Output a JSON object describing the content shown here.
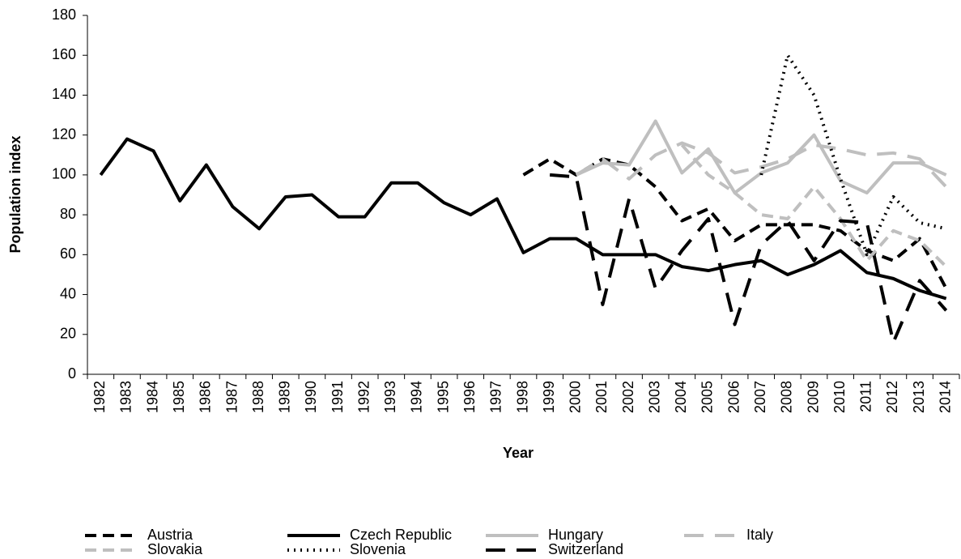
{
  "chart_data": {
    "type": "line",
    "x_label": "Year",
    "y_label": "Population index",
    "categories": [
      "1982",
      "1983",
      "1984",
      "1985",
      "1986",
      "1987",
      "1988",
      "1989",
      "1990",
      "1991",
      "1992",
      "1993",
      "1994",
      "1995",
      "1996",
      "1997",
      "1998",
      "1999",
      "2000",
      "2001",
      "2002",
      "2003",
      "2004",
      "2005",
      "2006",
      "2007",
      "2008",
      "2009",
      "2010",
      "2011",
      "2012",
      "2013",
      "2014"
    ],
    "ylim": [
      0,
      180
    ],
    "yticks": [
      0,
      20,
      40,
      60,
      80,
      100,
      120,
      140,
      160,
      180
    ],
    "series": [
      {
        "name": "Austria",
        "color": "#000000",
        "dash": "14,8",
        "values": [
          null,
          null,
          null,
          null,
          null,
          null,
          null,
          null,
          null,
          null,
          null,
          null,
          null,
          null,
          null,
          null,
          100,
          108,
          100,
          108,
          105,
          94,
          77,
          83,
          67,
          75,
          75,
          75,
          72,
          62,
          57,
          68,
          43
        ]
      },
      {
        "name": "Czech Republic",
        "color": "#000000",
        "dash": "none",
        "values": [
          100,
          118,
          112,
          87,
          105,
          84,
          73,
          89,
          90,
          79,
          79,
          96,
          96,
          86,
          80,
          88,
          61,
          68,
          68,
          60,
          60,
          60,
          54,
          52,
          55,
          57,
          50,
          55,
          62,
          51,
          48,
          42,
          38
        ]
      },
      {
        "name": "Hungary",
        "color": "#bfbfbf",
        "dash": "none",
        "values": [
          null,
          null,
          null,
          null,
          null,
          null,
          null,
          null,
          null,
          null,
          null,
          null,
          null,
          null,
          null,
          null,
          null,
          null,
          100,
          106,
          105,
          127,
          101,
          113,
          91,
          101,
          106,
          120,
          97,
          91,
          106,
          106,
          100
        ]
      },
      {
        "name": "Italy",
        "color": "#bfbfbf",
        "dash": "24,14",
        "values": [
          null,
          null,
          null,
          null,
          null,
          null,
          null,
          null,
          null,
          null,
          null,
          null,
          null,
          null,
          null,
          null,
          null,
          null,
          100,
          108,
          98,
          110,
          116,
          111,
          101,
          104,
          108,
          115,
          113,
          110,
          111,
          108,
          94
        ]
      },
      {
        "name": "Slovakia",
        "color": "#bfbfbf",
        "dash": "14,8",
        "values": [
          null,
          null,
          null,
          null,
          null,
          null,
          null,
          null,
          null,
          null,
          null,
          null,
          null,
          null,
          null,
          null,
          null,
          null,
          null,
          null,
          null,
          null,
          115,
          100,
          91,
          80,
          78,
          94,
          78,
          57,
          72,
          67,
          54
        ]
      },
      {
        "name": "Slovenia",
        "color": "#000000",
        "dash": "2,6",
        "values": [
          null,
          null,
          null,
          null,
          null,
          null,
          null,
          null,
          null,
          null,
          null,
          null,
          null,
          null,
          null,
          null,
          null,
          null,
          null,
          null,
          null,
          null,
          null,
          null,
          null,
          100,
          160,
          140,
          98,
          60,
          89,
          76,
          73
        ]
      },
      {
        "name": "Switzerland",
        "color": "#000000",
        "dash": "24,14",
        "values": [
          null,
          null,
          null,
          null,
          null,
          null,
          null,
          null,
          null,
          null,
          null,
          null,
          null,
          null,
          null,
          null,
          null,
          100,
          99,
          35,
          88,
          43,
          62,
          78,
          25,
          65,
          77,
          57,
          77,
          76,
          16,
          47,
          32
        ]
      }
    ]
  }
}
